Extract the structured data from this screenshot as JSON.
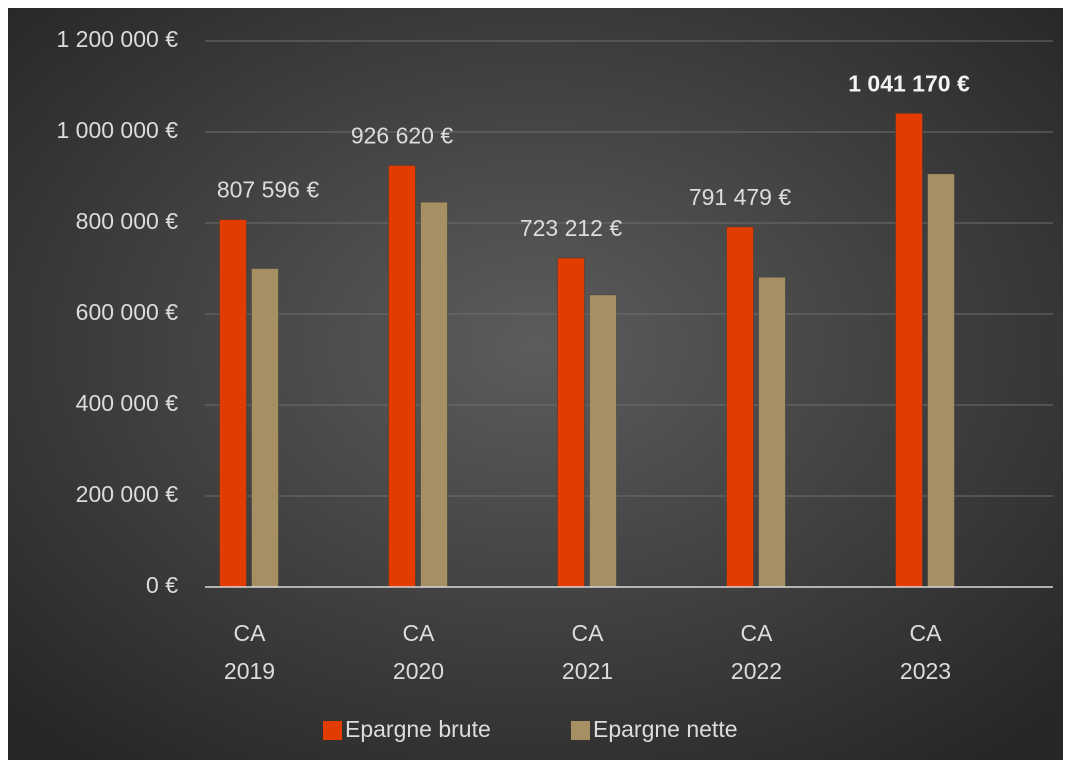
{
  "chart_data": {
    "type": "bar",
    "categories": [
      "CA 2019",
      "CA 2020",
      "CA 2021",
      "CA 2022",
      "CA 2023"
    ],
    "series": [
      {
        "name": "Epargne brute",
        "color": "#e23c00",
        "values": [
          807596,
          926620,
          723212,
          791479,
          1041170
        ],
        "value_labels": [
          "807 596 €",
          "926 620 €",
          "723 212 €",
          "791 479 €",
          "1 041 170 €"
        ]
      },
      {
        "name": "Epargne nette",
        "color": "#a68f62",
        "values": [
          700000,
          846000,
          642000,
          681000,
          908000
        ]
      }
    ],
    "ylim": [
      0,
      1200000
    ],
    "yticks": [
      {
        "value": 0,
        "label": "0 €"
      },
      {
        "value": 200000,
        "label": "200 000 €"
      },
      {
        "value": 400000,
        "label": "400 000 €"
      },
      {
        "value": 600000,
        "label": "600 000 €"
      },
      {
        "value": 800000,
        "label": "800 000 €"
      },
      {
        "value": 1000000,
        "label": "1 000 000 €"
      },
      {
        "value": 1200000,
        "label": "1 200 000 €"
      }
    ],
    "grid": true,
    "legend": "bottom"
  }
}
